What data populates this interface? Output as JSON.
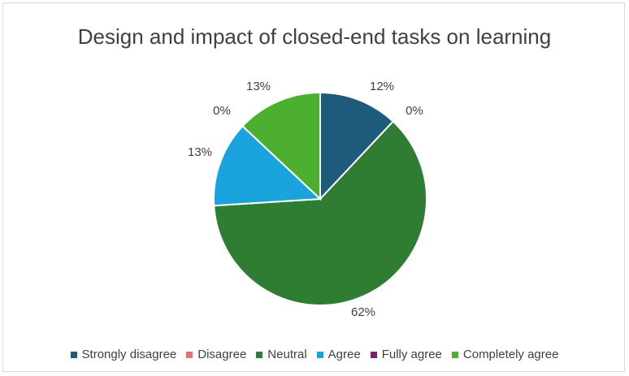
{
  "chart_data": {
    "type": "pie",
    "title": "Design and impact of closed-end tasks on learning",
    "categories": [
      "Strongly disagree",
      "Disagree",
      "Neutral",
      "Agree",
      "Fully agree",
      "Completely agree"
    ],
    "values": [
      12,
      0,
      62,
      13,
      0,
      13
    ],
    "labels": [
      "12%",
      "0%",
      "62%",
      "13%",
      "0%",
      "13%"
    ],
    "colors": [
      "#1e5b7a",
      "#e57373",
      "#2e7d32",
      "#1aa3dc",
      "#7b1f6b",
      "#4caf2f"
    ],
    "legend_position": "bottom"
  }
}
